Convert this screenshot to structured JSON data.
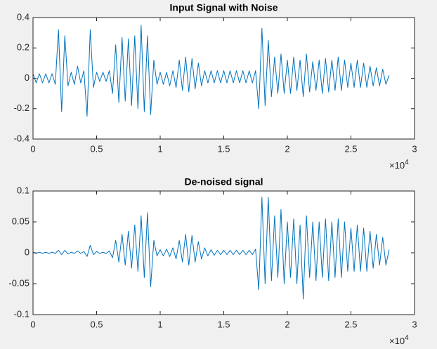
{
  "chart_data": [
    {
      "type": "line",
      "title": "Input Signal with Noise",
      "x": [
        0,
        250,
        500,
        750,
        1000,
        1250,
        1500,
        1750,
        2000,
        2250,
        2500,
        2750,
        3000,
        3250,
        3500,
        3750,
        4000,
        4250,
        4500,
        4750,
        5000,
        5250,
        5500,
        5750,
        6000,
        6250,
        6500,
        6750,
        7000,
        7250,
        7500,
        7750,
        8000,
        8250,
        8500,
        8750,
        9000,
        9250,
        9500,
        9750,
        10000,
        10250,
        10500,
        10750,
        11000,
        11250,
        11500,
        11750,
        12000,
        12250,
        12500,
        12750,
        13000,
        13250,
        13500,
        13750,
        14000,
        14250,
        14500,
        14750,
        15000,
        15250,
        15500,
        15750,
        16000,
        16250,
        16500,
        16750,
        17000,
        17250,
        17500,
        17750,
        18000,
        18250,
        18500,
        18750,
        19000,
        19250,
        19500,
        19750,
        20000,
        20250,
        20500,
        20750,
        21000,
        21250,
        21500,
        21750,
        22000,
        22250,
        22500,
        22750,
        23000,
        23250,
        23500,
        23750,
        24000,
        24250,
        24500,
        24750,
        25000,
        25250,
        25500,
        25750,
        26000,
        26250,
        26500,
        26750,
        27000,
        27250,
        27500,
        27750,
        28000
      ],
      "series": [
        {
          "color": "#0072bd",
          "values": [
            0.03,
            -0.03,
            0.03,
            -0.03,
            0.03,
            -0.03,
            0.03,
            -0.04,
            0.32,
            -0.22,
            0.28,
            -0.05,
            0.04,
            -0.04,
            0.08,
            -0.03,
            0.05,
            -0.25,
            0.32,
            -0.06,
            0.04,
            -0.02,
            0.04,
            -0.02,
            0.05,
            -0.1,
            0.22,
            -0.16,
            0.27,
            -0.15,
            0.26,
            -0.18,
            0.28,
            -0.2,
            0.35,
            -0.22,
            0.28,
            -0.24,
            0.12,
            -0.04,
            0.04,
            -0.04,
            0.04,
            -0.05,
            0.05,
            -0.06,
            0.12,
            -0.08,
            0.14,
            -0.09,
            0.13,
            -0.07,
            0.1,
            -0.05,
            0.05,
            -0.03,
            0.05,
            -0.03,
            0.05,
            -0.03,
            0.05,
            -0.03,
            0.05,
            -0.03,
            0.05,
            -0.03,
            0.05,
            -0.03,
            0.05,
            -0.03,
            0.05,
            -0.2,
            0.33,
            -0.18,
            0.25,
            -0.12,
            0.14,
            -0.1,
            0.16,
            -0.1,
            0.12,
            -0.1,
            0.14,
            -0.08,
            0.12,
            -0.12,
            0.16,
            -0.09,
            0.11,
            -0.08,
            0.12,
            -0.1,
            0.13,
            -0.09,
            0.12,
            -0.08,
            0.14,
            -0.08,
            0.12,
            -0.06,
            0.1,
            -0.06,
            0.12,
            -0.06,
            0.1,
            -0.06,
            0.08,
            -0.05,
            0.07,
            -0.05,
            0.06,
            -0.04,
            0.02
          ]
        }
      ],
      "xlim": [
        0,
        30000
      ],
      "xticks": [
        0,
        {
          "value": 5000,
          "label": "0.5"
        },
        {
          "value": 10000,
          "label": "1"
        },
        {
          "value": 15000,
          "label": "1.5"
        },
        {
          "value": 20000,
          "label": "2"
        },
        {
          "value": 25000,
          "label": "2.5"
        },
        {
          "value": 30000,
          "label": "3"
        }
      ],
      "x_multiplier": {
        "base": "×10",
        "exponent": "4"
      },
      "ylim": [
        -0.4,
        0.4
      ],
      "yticks": [
        -0.4,
        -0.2,
        0,
        0.2,
        0.4
      ],
      "grid": false
    },
    {
      "type": "line",
      "title": "De-noised signal",
      "x": [
        0,
        250,
        500,
        750,
        1000,
        1250,
        1500,
        1750,
        2000,
        2250,
        2500,
        2750,
        3000,
        3250,
        3500,
        3750,
        4000,
        4250,
        4500,
        4750,
        5000,
        5250,
        5500,
        5750,
        6000,
        6250,
        6500,
        6750,
        7000,
        7250,
        7500,
        7750,
        8000,
        8250,
        8500,
        8750,
        9000,
        9250,
        9500,
        9750,
        10000,
        10250,
        10500,
        10750,
        11000,
        11250,
        11500,
        11750,
        12000,
        12250,
        12500,
        12750,
        13000,
        13250,
        13500,
        13750,
        14000,
        14250,
        14500,
        14750,
        15000,
        15250,
        15500,
        15750,
        16000,
        16250,
        16500,
        16750,
        17000,
        17250,
        17500,
        17750,
        18000,
        18250,
        18500,
        18750,
        19000,
        19250,
        19500,
        19750,
        20000,
        20250,
        20500,
        20750,
        21000,
        21250,
        21500,
        21750,
        22000,
        22250,
        22500,
        22750,
        23000,
        23250,
        23500,
        23750,
        24000,
        24250,
        24500,
        24750,
        25000,
        25250,
        25500,
        25750,
        26000,
        26250,
        26500,
        26750,
        27000,
        27250,
        27500,
        27750,
        28000
      ],
      "series": [
        {
          "color": "#0072bd",
          "values": [
            0.001,
            -0.001,
            0.001,
            -0.001,
            0.001,
            -0.001,
            0.001,
            -0.001,
            0.004,
            -0.003,
            0.004,
            -0.002,
            0.001,
            -0.001,
            0.003,
            -0.001,
            0.002,
            -0.006,
            0.012,
            -0.003,
            0.002,
            -0.001,
            0.001,
            -0.001,
            0.003,
            -0.008,
            0.02,
            -0.015,
            0.03,
            -0.02,
            0.035,
            -0.025,
            0.045,
            -0.03,
            0.06,
            -0.04,
            0.065,
            -0.055,
            0.02,
            -0.005,
            0.005,
            -0.005,
            0.006,
            -0.006,
            0.008,
            -0.01,
            0.02,
            -0.015,
            0.03,
            -0.02,
            0.028,
            -0.015,
            0.018,
            -0.01,
            0.008,
            -0.005,
            0.005,
            -0.004,
            0.004,
            -0.003,
            0.004,
            -0.003,
            0.004,
            -0.003,
            0.004,
            -0.003,
            0.004,
            -0.003,
            0.004,
            -0.003,
            0.006,
            -0.06,
            0.09,
            -0.05,
            0.09,
            -0.045,
            0.06,
            -0.04,
            0.07,
            -0.05,
            0.05,
            -0.04,
            0.055,
            -0.05,
            0.045,
            -0.075,
            0.06,
            -0.04,
            0.05,
            -0.045,
            0.05,
            -0.04,
            0.055,
            -0.045,
            0.05,
            -0.04,
            0.055,
            -0.04,
            0.05,
            -0.03,
            0.04,
            -0.03,
            0.045,
            -0.03,
            0.04,
            -0.03,
            0.035,
            -0.025,
            0.03,
            -0.02,
            0.025,
            -0.02,
            0.005
          ]
        }
      ],
      "xlim": [
        0,
        30000
      ],
      "xticks": [
        0,
        {
          "value": 5000,
          "label": "0.5"
        },
        {
          "value": 10000,
          "label": "1"
        },
        {
          "value": 15000,
          "label": "1.5"
        },
        {
          "value": 20000,
          "label": "2"
        },
        {
          "value": 25000,
          "label": "2.5"
        },
        {
          "value": 30000,
          "label": "3"
        }
      ],
      "x_multiplier": {
        "base": "×10",
        "exponent": "4"
      },
      "ylim": [
        -0.1,
        0.1
      ],
      "yticks": [
        -0.1,
        -0.05,
        0,
        0.05,
        0.1
      ],
      "grid": false
    }
  ]
}
